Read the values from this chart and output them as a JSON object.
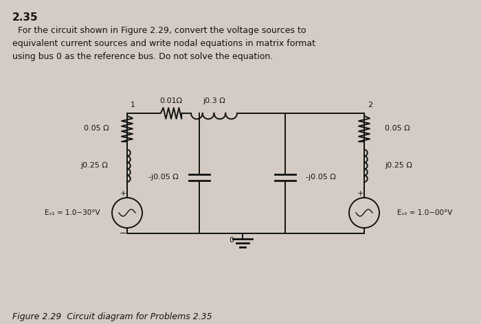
{
  "title": "2.35",
  "line1": "  For the circuit shown in Figure 2.29, convert the voltage sources to",
  "line2": "equivalent current sources and write nodal equations in matrix format",
  "line3": "using bus 0 as the reference bus. Do not solve the equation.",
  "figure_caption": "Figure 2.29  Circuit diagram for Problems 2.35",
  "bg_color": "#d4ccc4",
  "circuit_color": "#111111",
  "text_color": "#111111",
  "node1_label": "1",
  "node2_label": "2",
  "node0_label": "0",
  "r_left_top": "0.05 Ω",
  "r_left_bot": "j0.25 Ω",
  "r_right_top": "0.05 Ω",
  "r_right_bot": "j0.25 Ω",
  "r_series1": "0.01Ω",
  "r_series2": "j0.3 Ω",
  "cap_left": "-j0.05 Ω",
  "cap_right": "-j0.05 Ω",
  "vs_left": "Eₛ₁ = 1.0−30°V",
  "vs_right": "Eₛ₂ = 1.0−00°V"
}
